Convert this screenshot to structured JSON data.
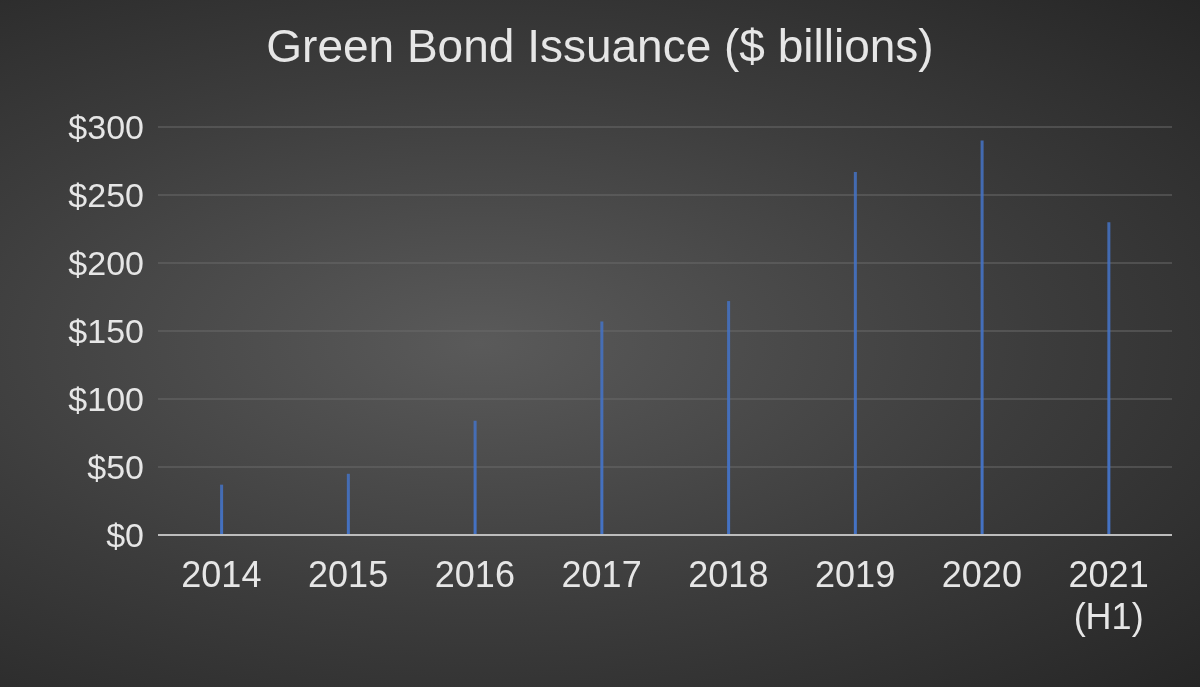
{
  "chart_data": {
    "type": "bar",
    "title": "Green Bond Issuance ($ billions)",
    "categories": [
      "2014",
      "2015",
      "2016",
      "2017",
      "2018",
      "2019",
      "2020",
      "2021 (H1)"
    ],
    "values": [
      37,
      45,
      84,
      157,
      172,
      267,
      290,
      230
    ],
    "color": "#4472c4",
    "ylim": [
      0,
      300
    ],
    "yticks": [
      {
        "value": 0,
        "label": "$0"
      },
      {
        "value": 50,
        "label": "$50"
      },
      {
        "value": 100,
        "label": "$100"
      },
      {
        "value": 150,
        "label": "$150"
      },
      {
        "value": 200,
        "label": "$200"
      },
      {
        "value": 250,
        "label": "$250"
      },
      {
        "value": 300,
        "label": "$300"
      }
    ],
    "grid": true
  }
}
